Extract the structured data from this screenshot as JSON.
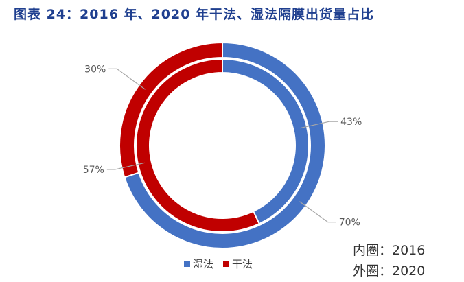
{
  "title": "图表 24：2016 年、2020 年干法、湿法隔膜出货量占比",
  "colors": {
    "wet": "#4472c4",
    "dry": "#c00000"
  },
  "legend": {
    "wet": "湿法",
    "dry": "干法"
  },
  "notes": {
    "inner": "内圈：2016",
    "outer": "外圈：2020"
  },
  "chart_data": {
    "type": "pie",
    "variant": "nested-donut",
    "categories": [
      "湿法",
      "干法"
    ],
    "series": [
      {
        "name": "内圈：2016",
        "ring": "inner",
        "values": [
          43,
          57
        ],
        "labels": [
          "43%",
          "57%"
        ]
      },
      {
        "name": "外圈：2020",
        "ring": "outer",
        "values": [
          70,
          30
        ],
        "labels": [
          "70%",
          "30%"
        ]
      }
    ],
    "legend_position": "bottom"
  }
}
